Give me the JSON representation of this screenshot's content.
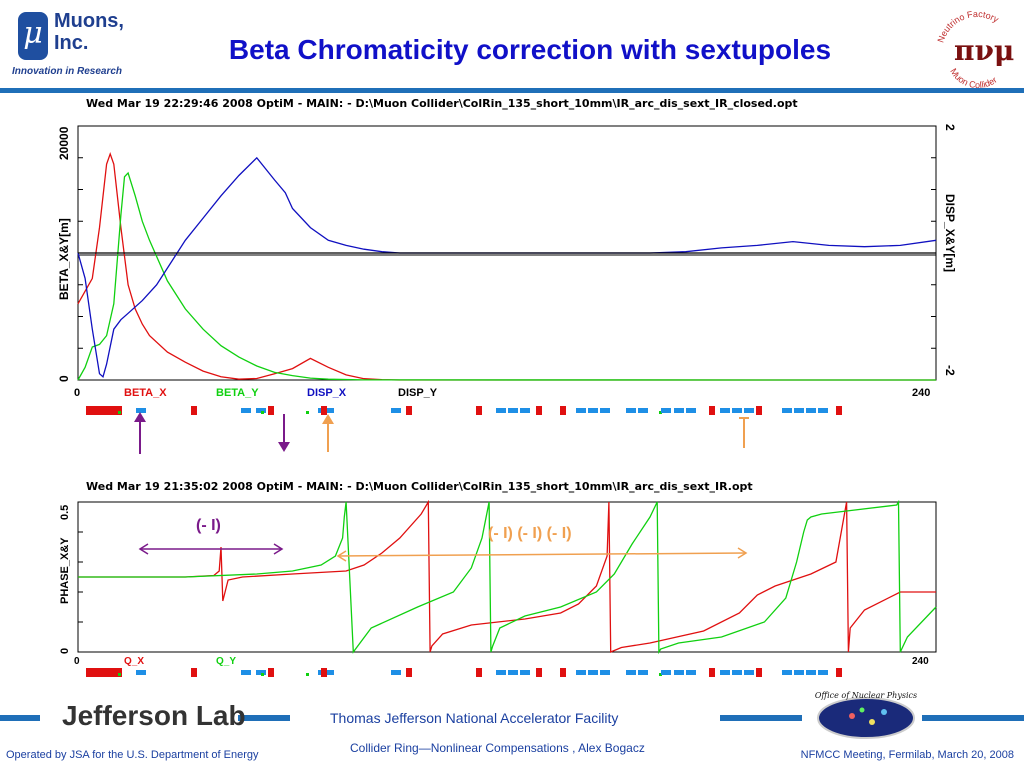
{
  "logo": {
    "symbol": "μ",
    "name_line1": "Muons,",
    "name_line2": "Inc.",
    "tagline": "Innovation in Research"
  },
  "slide_title": "Beta Chromaticity correction with sextupoles",
  "corner_logo": {
    "top_text": "Neutrino Factory",
    "bottom_text": "Muon Collider",
    "symbols": "πνμ"
  },
  "footer": {
    "jlab": "Jefferson Lab",
    "facility": "Thomas Jefferson National Accelerator Facility",
    "talk": "Collider Ring—Nonlinear Compensations , Alex Bogacz",
    "operated": "Operated by JSA for the U.S. Department of Energy",
    "meeting": "NFMCC Meeting, Fermilab, March 20, 2008",
    "doe_text": "Office of Nuclear Physics"
  },
  "colors": {
    "red": "#e01010",
    "green": "#10d010",
    "blue": "#1010c0",
    "magnet_blue": "#1e8fe6",
    "purple": "#7a1a8a",
    "orange": "#f0a050"
  },
  "chart_data": [
    {
      "type": "line",
      "header": "Wed Mar 19 22:29:46 2008    OptiM - MAIN: - D:\\Muon Collider\\ColRin_135_short_10mm\\IR_arc_dis_sext_IR_closed.opt",
      "ylabel": "BETA_X&Y[m]",
      "y2label": "DISP_X&Y[m]",
      "xlim": [
        0,
        240
      ],
      "ylim": [
        0,
        20000
      ],
      "y2lim": [
        -2,
        2
      ],
      "x_ticks": [
        "0",
        "240"
      ],
      "y_ticks": [
        "0",
        "20000"
      ],
      "y2_ticks": [
        "-2",
        "2"
      ],
      "legend": [
        "BETA_X",
        "BETA_Y",
        "DISP_X",
        "DISP_Y"
      ],
      "series": [
        {
          "name": "BETA_X",
          "axis": "y",
          "color": "#e01010",
          "x": [
            0,
            4,
            6,
            8,
            9,
            10,
            12,
            14,
            16,
            18,
            20,
            25,
            30,
            35,
            40,
            45,
            50,
            55,
            60,
            65,
            70,
            75,
            80,
            85,
            90,
            240
          ],
          "y": [
            6000,
            8000,
            12000,
            17000,
            17800,
            17000,
            12000,
            7500,
            5600,
            4400,
            3500,
            2200,
            1400,
            700,
            250,
            60,
            120,
            500,
            900,
            1700,
            1000,
            400,
            100,
            20,
            0,
            0
          ]
        },
        {
          "name": "BETA_Y",
          "axis": "y",
          "color": "#10d010",
          "x": [
            0,
            2,
            4,
            6,
            8,
            10,
            12,
            13,
            14,
            16,
            18,
            20,
            25,
            30,
            35,
            40,
            45,
            50,
            55,
            60,
            65,
            70,
            80,
            240
          ],
          "y": [
            0,
            1000,
            2600,
            2800,
            3500,
            6000,
            13000,
            16000,
            16300,
            14500,
            12500,
            11000,
            7800,
            5600,
            4000,
            2700,
            1800,
            1100,
            600,
            350,
            150,
            60,
            10,
            0
          ]
        },
        {
          "name": "DISP_X",
          "axis": "y2",
          "color": "#1010c0",
          "x": [
            0,
            2,
            4,
            6,
            7,
            8,
            10,
            12,
            14,
            18,
            22,
            26,
            30,
            35,
            40,
            45,
            50,
            55,
            58,
            60,
            65,
            70,
            75,
            80,
            85,
            90,
            100,
            120,
            140,
            150,
            160,
            170,
            180,
            190,
            200,
            210,
            220,
            230,
            240
          ],
          "y": [
            0,
            -0.4,
            -1.2,
            -1.9,
            -1.95,
            -1.75,
            -1.2,
            -1.05,
            -0.95,
            -0.75,
            -0.5,
            -0.15,
            0.2,
            0.55,
            0.9,
            1.22,
            1.5,
            1.15,
            0.95,
            0.7,
            0.4,
            0.2,
            0.12,
            0.06,
            0.02,
            0,
            0,
            0,
            0,
            0,
            0,
            0.02,
            0.08,
            0.12,
            0.18,
            0.12,
            0.1,
            0.12,
            0.2
          ]
        },
        {
          "name": "DISP_Y",
          "axis": "y2",
          "color": "#000000",
          "x": [
            0,
            240
          ],
          "y": [
            0,
            0
          ]
        }
      ]
    },
    {
      "type": "line",
      "header": "Wed Mar 19 21:35:02 2008    OptiM - MAIN: - D:\\Muon Collider\\ColRin_135_short_10mm\\IR_arc_dis_sext_IR.opt",
      "ylabel": "PHASE_X&Y",
      "xlim": [
        0,
        240
      ],
      "ylim": [
        0,
        0.5
      ],
      "x_ticks": [
        "0",
        "240"
      ],
      "y_ticks": [
        "0",
        "0.5"
      ],
      "legend": [
        "Q_X",
        "Q_Y"
      ],
      "annotations": [
        "(- I)",
        "(- I) (- I) (- I)"
      ],
      "series": [
        {
          "name": "Q_X",
          "color": "#e01010",
          "x": [
            0,
            30,
            38,
            39.5,
            40,
            40.5,
            42,
            46,
            60,
            75,
            80,
            85,
            90,
            96,
            98,
            98.5,
            99,
            102,
            110,
            125,
            135,
            140,
            145,
            148,
            148.5,
            149,
            152,
            160,
            175,
            185,
            190,
            195,
            200,
            205,
            212,
            215,
            215.5,
            216,
            220,
            230,
            240
          ],
          "y": [
            0.25,
            0.25,
            0.255,
            0.27,
            0.35,
            0.17,
            0.24,
            0.25,
            0.26,
            0.27,
            0.29,
            0.33,
            0.38,
            0.46,
            0.5,
            0,
            0.02,
            0.06,
            0.09,
            0.11,
            0.13,
            0.16,
            0.22,
            0.32,
            0.5,
            0,
            0.015,
            0.03,
            0.07,
            0.13,
            0.19,
            0.22,
            0.24,
            0.26,
            0.3,
            0.5,
            0,
            0.08,
            0.14,
            0.2,
            0.2
          ]
        },
        {
          "name": "Q_Y",
          "color": "#10d010",
          "x": [
            0,
            30,
            50,
            60,
            68,
            72,
            74,
            74.5,
            75,
            77,
            82,
            95,
            105,
            110,
            113,
            115,
            115.5,
            116,
            118,
            125,
            135,
            145,
            150,
            155,
            160,
            162,
            162.5,
            163,
            168,
            180,
            192,
            198,
            201,
            203,
            204,
            205,
            208,
            215,
            229,
            229.5,
            230,
            232,
            240
          ],
          "y": [
            0.25,
            0.25,
            0.26,
            0.27,
            0.29,
            0.32,
            0.38,
            0.45,
            0.5,
            0,
            0.08,
            0.15,
            0.2,
            0.28,
            0.38,
            0.5,
            0,
            0.02,
            0.08,
            0.12,
            0.15,
            0.2,
            0.26,
            0.36,
            0.45,
            0.5,
            0,
            0.01,
            0.03,
            0.05,
            0.1,
            0.18,
            0.3,
            0.4,
            0.44,
            0.45,
            0.46,
            0.47,
            0.49,
            0.5,
            0,
            0.05,
            0.15
          ]
        }
      ]
    }
  ],
  "lattice": {
    "colors": {
      "dipole": "#e01010",
      "quad": "#1e8fe6",
      "sext": "#10d010"
    }
  }
}
